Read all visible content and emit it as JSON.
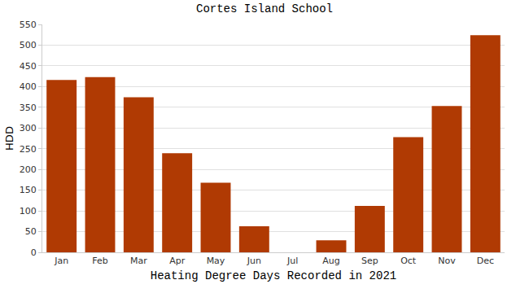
{
  "chart_data": {
    "type": "bar",
    "title": "Cortes Island School",
    "x_label": "Heating Degree Days Recorded in 2021",
    "y_label": "HDD",
    "categories": [
      "Jan",
      "Feb",
      "Mar",
      "Apr",
      "May",
      "Jun",
      "Jul",
      "Aug",
      "Sep",
      "Oct",
      "Nov",
      "Dec"
    ],
    "values": [
      416,
      423,
      374,
      239,
      168,
      63,
      0,
      29,
      112,
      278,
      353,
      524
    ],
    "color": "#b03a03",
    "ylim": [
      0,
      550
    ],
    "yticks": [
      0,
      50,
      100,
      150,
      200,
      250,
      300,
      350,
      400,
      450,
      500,
      550
    ],
    "grid": true
  }
}
